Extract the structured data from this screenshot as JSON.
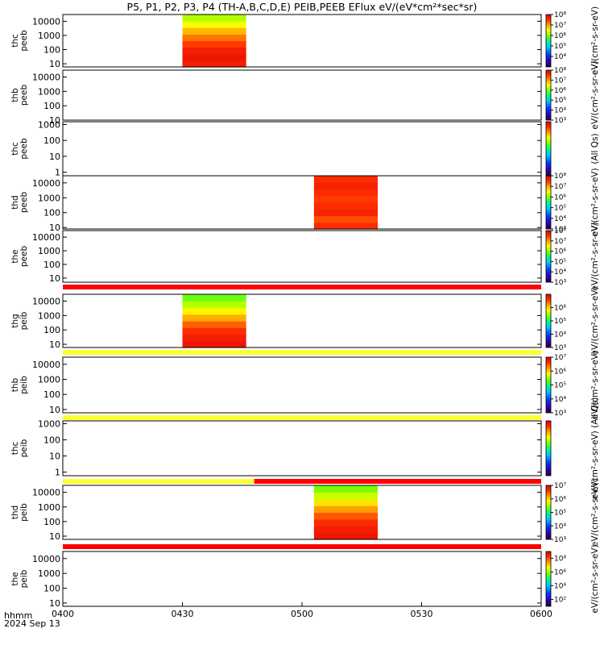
{
  "title": "P5, P1, P2, P3, P4 (TH-A,B,C,D,E) PEIB,PEEB EFlux eV/(eV*cm²*sec*sr)",
  "x_axis": {
    "corner_label": "hhmm",
    "date_label": "2024 Sep 13",
    "ticks": [
      "0400",
      "0430",
      "0500",
      "0530",
      "0600"
    ]
  },
  "colors": {
    "background": "#ffffff",
    "axis": "#000000",
    "flag_red": "#ff0000",
    "flag_yellow": "#ffff33",
    "colormap": [
      "#200040",
      "#3000c0",
      "#0040ff",
      "#00c8ff",
      "#00ff80",
      "#80ff00",
      "#ffff00",
      "#ffa000",
      "#ff3000",
      "#e00000"
    ]
  },
  "chart_data": {
    "type": "heatmap",
    "x_unit": "UT hhmm",
    "x_range": [
      "0400",
      "0600"
    ],
    "panels": [
      {
        "ylabel": "thc peeb",
        "yscale": "log",
        "ylim": [
          6,
          30000
        ],
        "yticks": [
          "10",
          "100",
          "1000",
          "10000"
        ],
        "colorbar": {
          "label": "eV/(cm²-s-sr-eV)",
          "ticks": [
            "10⁴",
            "10⁵",
            "10⁶",
            "10⁷",
            "10⁸"
          ],
          "range_exp": [
            3,
            8
          ]
        },
        "data_blocks": [
          {
            "start": "0430",
            "end": "0446",
            "levels": [
              0.93,
              0.95,
              0.93,
              0.88,
              0.82,
              0.75,
              0.66,
              0.6
            ]
          }
        ]
      },
      {
        "ylabel": "thb peeb",
        "yscale": "log",
        "ylim": [
          10,
          30000
        ],
        "yticks": [
          "10",
          "100",
          "1000",
          "10000"
        ],
        "colorbar": {
          "label": "eV/(cm²-s-sr-eV)",
          "ticks": [
            "10³",
            "10⁴",
            "10⁵",
            "10⁶",
            "10⁷",
            "10⁸"
          ],
          "range_exp": [
            3,
            8
          ]
        },
        "data_blocks": []
      },
      {
        "ylabel": "thc peeb",
        "yscale": "log",
        "ylim": [
          0.6,
          1500
        ],
        "yticks": [
          "1",
          "10",
          "100",
          "1000"
        ],
        "colorbar": {
          "label": "(All Qs)",
          "ticks": [],
          "range_exp": [
            3,
            8
          ]
        },
        "data_blocks": []
      },
      {
        "ylabel": "thd peeb",
        "yscale": "log",
        "ylim": [
          8,
          30000
        ],
        "yticks": [
          "10",
          "100",
          "1000",
          "10000"
        ],
        "colorbar": {
          "label": "eV/(cm²-s-sr-eV)",
          "ticks": [
            "10³",
            "10⁴",
            "10⁵",
            "10⁶",
            "10⁷",
            "10⁸"
          ],
          "range_exp": [
            3,
            8
          ]
        },
        "data_blocks": [
          {
            "start": "0503",
            "end": "0519",
            "levels": [
              0.9,
              0.86,
              0.92,
              0.9,
              0.88,
              0.9,
              0.92,
              0.9
            ]
          }
        ]
      },
      {
        "ylabel": "the peeb",
        "yscale": "log",
        "ylim": [
          5,
          30000
        ],
        "yticks": [
          "10",
          "100",
          "1000",
          "10000"
        ],
        "colorbar": {
          "label": "eV/(cm²-s-sr-eV)",
          "ticks": [
            "10³",
            "10⁴",
            "10⁵",
            "10⁶",
            "10⁷",
            "10⁸"
          ],
          "range_exp": [
            3,
            8
          ]
        },
        "data_blocks": []
      },
      {
        "ylabel": "thg peib",
        "yscale": "log",
        "ylim": [
          6,
          30000
        ],
        "yticks": [
          "10",
          "100",
          "1000",
          "10000"
        ],
        "colorbar": {
          "label": "eV/(cm²-s-sr-eV)",
          "ticks": [
            "10³",
            "10⁴",
            "10⁵",
            "10⁶"
          ],
          "range_exp": [
            3,
            7
          ]
        },
        "data_blocks": [
          {
            "start": "0430",
            "end": "0446",
            "levels": [
              0.95,
              0.93,
              0.9,
              0.84,
              0.76,
              0.68,
              0.6,
              0.54
            ]
          }
        ]
      },
      {
        "ylabel": "thb peib",
        "yscale": "log",
        "ylim": [
          6,
          30000
        ],
        "yticks": [
          "10",
          "100",
          "1000",
          "10000"
        ],
        "colorbar": {
          "label": "eV/(cm²-s-sr-eV)",
          "ticks": [
            "10³",
            "10⁴",
            "10⁵",
            "10⁶",
            "10⁷"
          ],
          "range_exp": [
            3,
            7
          ]
        },
        "data_blocks": []
      },
      {
        "ylabel": "thc peib",
        "yscale": "log",
        "ylim": [
          0.6,
          1500
        ],
        "yticks": [
          "1",
          "10",
          "100",
          "1000"
        ],
        "colorbar": {
          "label": "eV/(cm²-s-sr-eV) (All Qs)",
          "ticks": [],
          "range_exp": [
            3,
            7
          ]
        },
        "data_blocks": []
      },
      {
        "ylabel": "thd peib",
        "yscale": "log",
        "ylim": [
          6,
          30000
        ],
        "yticks": [
          "10",
          "100",
          "1000",
          "10000"
        ],
        "colorbar": {
          "label": "eV/(cm²-s-sr-eV)",
          "ticks": [
            "10³",
            "10⁴",
            "10⁵",
            "10⁶",
            "10⁷"
          ],
          "range_exp": [
            3,
            7
          ]
        },
        "data_blocks": [
          {
            "start": "0503",
            "end": "0519",
            "levels": [
              0.95,
              0.93,
              0.9,
              0.85,
              0.78,
              0.7,
              0.62,
              0.55
            ]
          }
        ]
      },
      {
        "ylabel": "the peib",
        "yscale": "log",
        "ylim": [
          6,
          30000
        ],
        "yticks": [
          "10",
          "100",
          "1000",
          "10000"
        ],
        "colorbar": {
          "label": "eV/(cm²-s-sr-eV)",
          "ticks": [
            "10²",
            "10⁴",
            "10⁶",
            "10⁸"
          ],
          "range_exp": [
            1,
            9
          ]
        },
        "data_blocks": []
      }
    ],
    "flag_bars": [
      {
        "after_panel": 4,
        "segments": [
          {
            "start": "0400",
            "end": "0600",
            "color": "red"
          }
        ]
      },
      {
        "after_panel": 5,
        "segments": [
          {
            "start": "0400",
            "end": "0600",
            "color": "yellow"
          }
        ]
      },
      {
        "after_panel": 6,
        "segments": [
          {
            "start": "0400",
            "end": "0600",
            "color": "yellow"
          }
        ]
      },
      {
        "after_panel": 7,
        "segments": [
          {
            "start": "0400",
            "end": "0448",
            "color": "yellow"
          },
          {
            "start": "0448",
            "end": "0600",
            "color": "red"
          }
        ]
      },
      {
        "after_panel": 8,
        "segments": [
          {
            "start": "0400",
            "end": "0600",
            "color": "red"
          }
        ]
      }
    ]
  }
}
